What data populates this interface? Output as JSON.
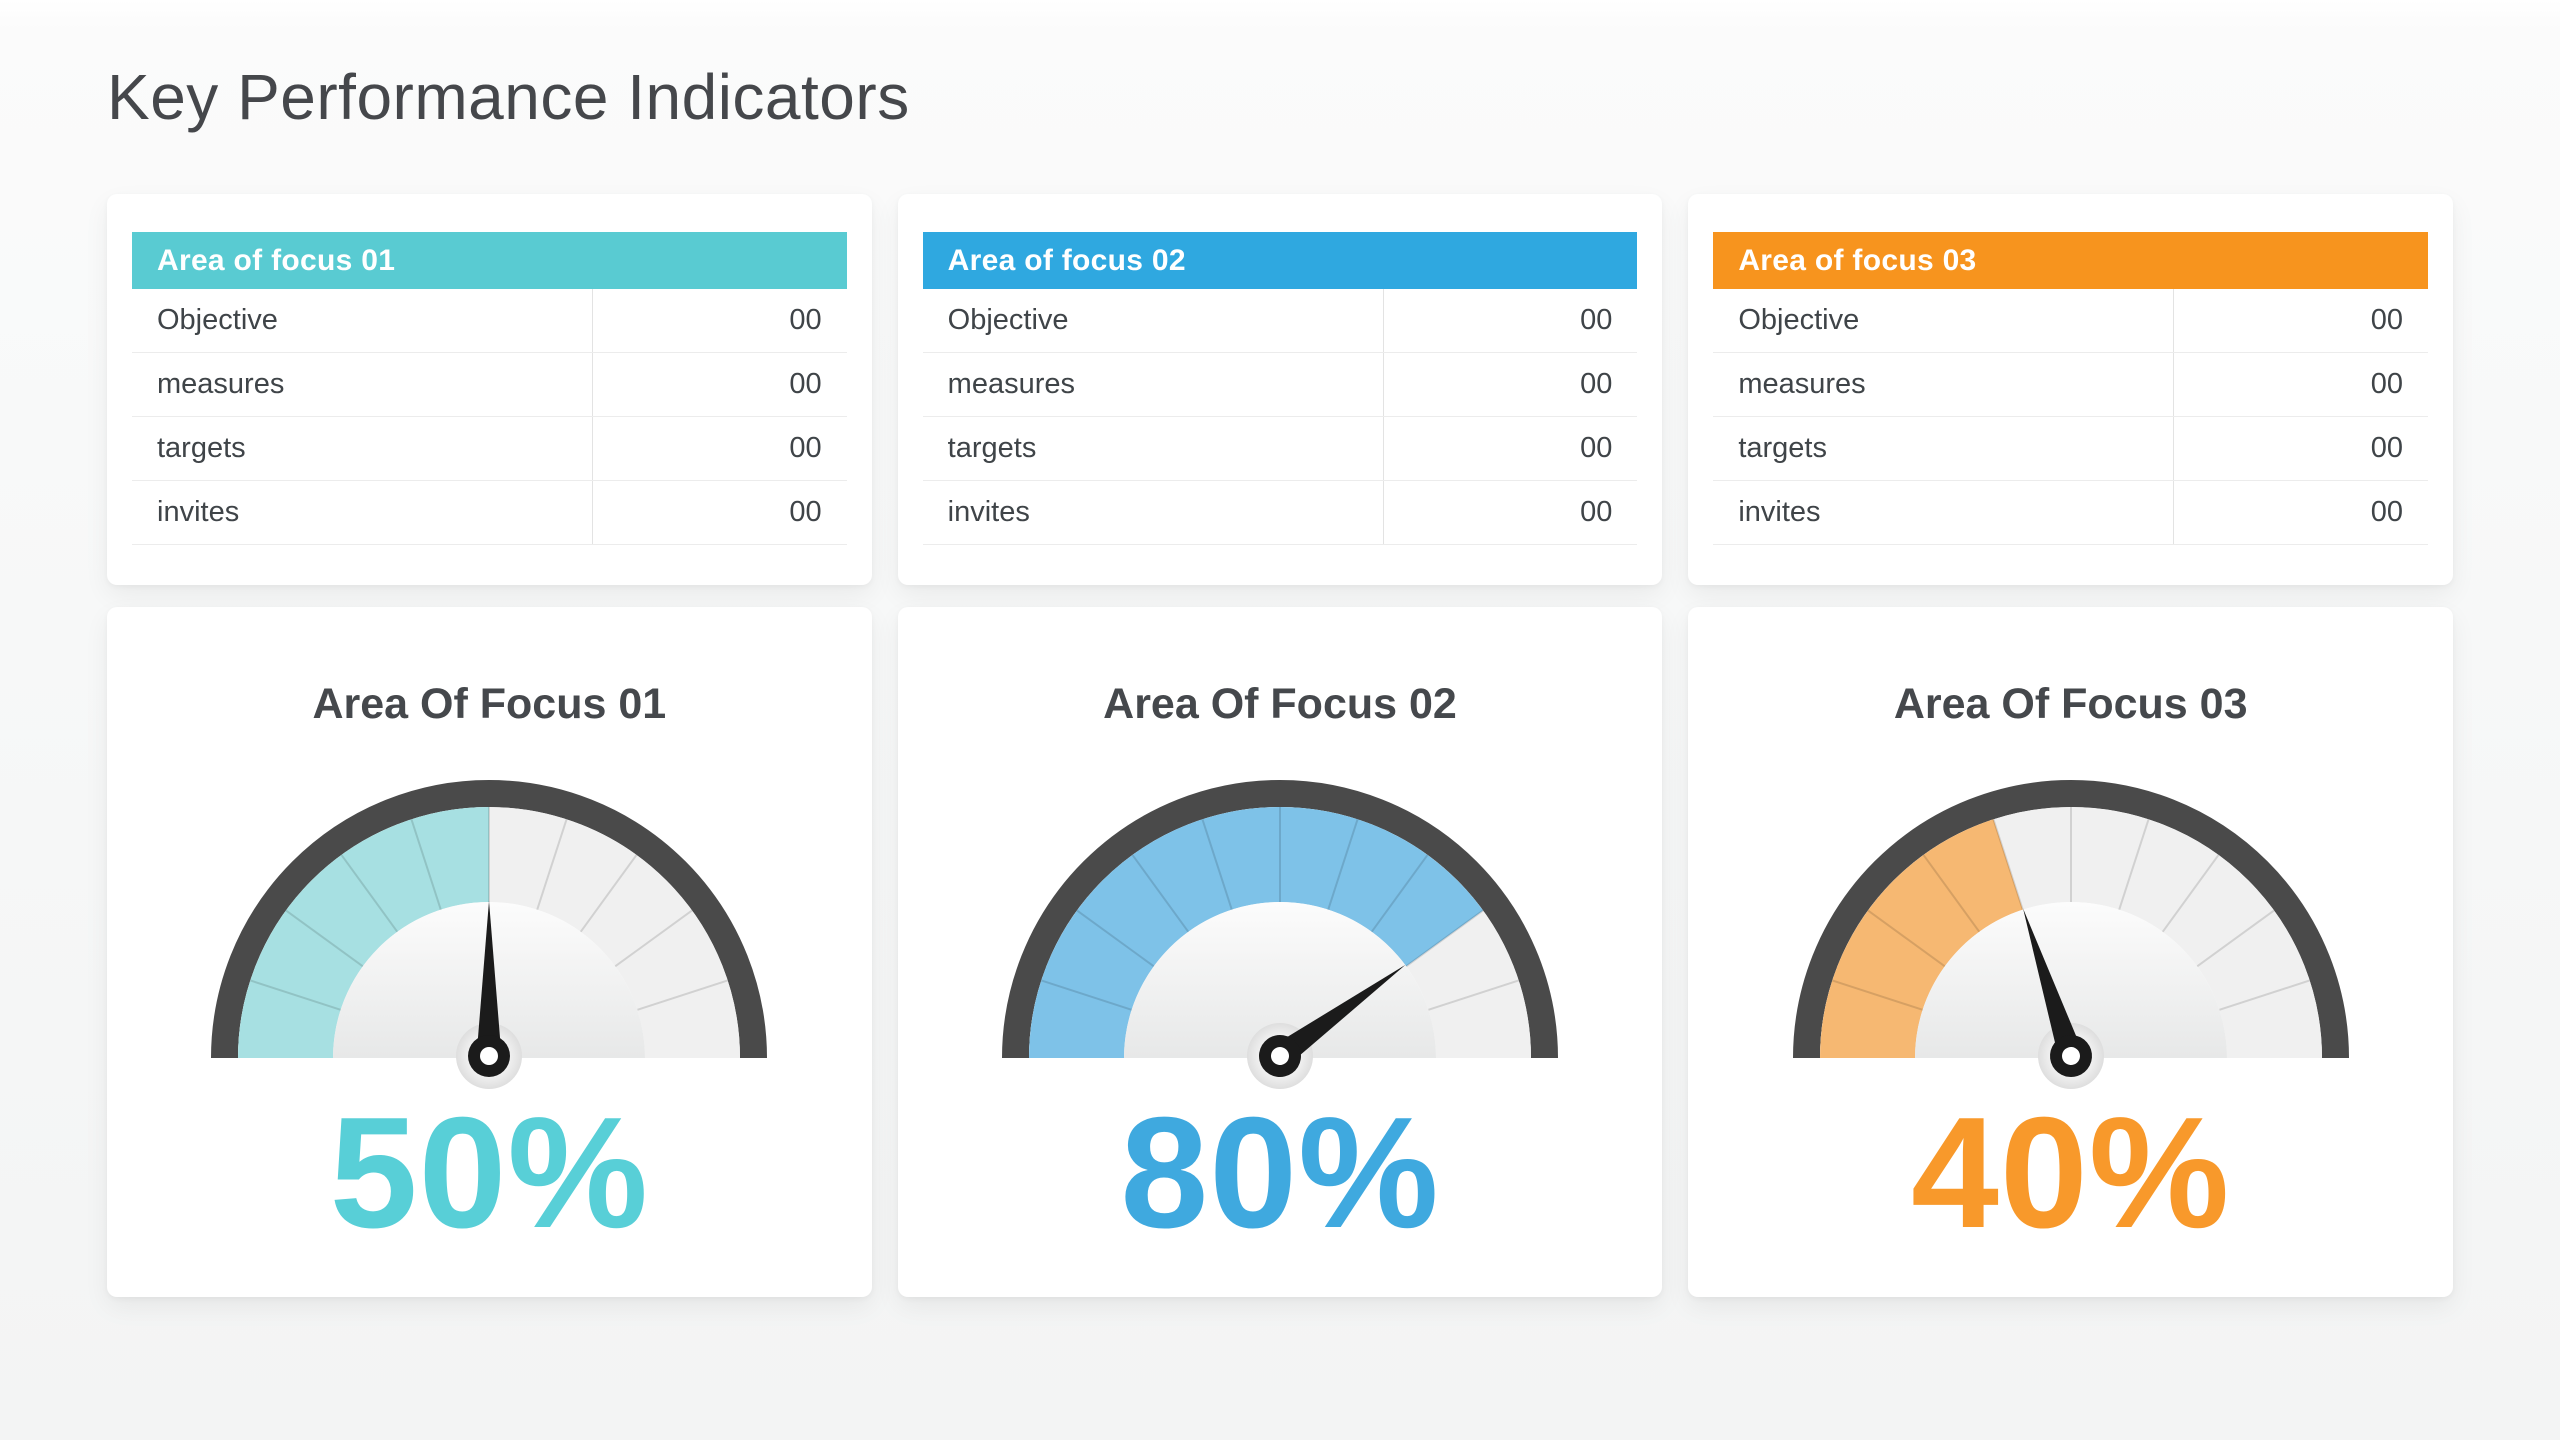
{
  "page": {
    "title": "Key Performance Indicators"
  },
  "tables": [
    {
      "header": "Area of focus 01",
      "header_color": "#59CBD2",
      "rows": [
        {
          "label": "Objective",
          "value": "00"
        },
        {
          "label": "measures",
          "value": "00"
        },
        {
          "label": "targets",
          "value": "00"
        },
        {
          "label": "invites",
          "value": "00"
        }
      ]
    },
    {
      "header": "Area of focus 02",
      "header_color": "#2FA8E0",
      "rows": [
        {
          "label": "Objective",
          "value": "00"
        },
        {
          "label": "measures",
          "value": "00"
        },
        {
          "label": "targets",
          "value": "00"
        },
        {
          "label": "invites",
          "value": "00"
        }
      ]
    },
    {
      "header": "Area of focus 03",
      "header_color": "#F7941E",
      "rows": [
        {
          "label": "Objective",
          "value": "00"
        },
        {
          "label": "measures",
          "value": "00"
        },
        {
          "label": "targets",
          "value": "00"
        },
        {
          "label": "invites",
          "value": "00"
        }
      ]
    }
  ],
  "chart_data": [
    {
      "type": "gauge",
      "title": "Area Of Focus 01",
      "value": 50,
      "min": 0,
      "max": 100,
      "label": "50%",
      "segments": 10,
      "band_color": "#A7E0E2",
      "value_color": "#58CFD7"
    },
    {
      "type": "gauge",
      "title": "Area Of Focus 02",
      "value": 80,
      "min": 0,
      "max": 100,
      "label": "80%",
      "segments": 10,
      "band_color": "#7EC2E8",
      "value_color": "#3FA9DF"
    },
    {
      "type": "gauge",
      "title": "Area Of Focus 03",
      "value": 40,
      "min": 0,
      "max": 100,
      "label": "40%",
      "segments": 10,
      "band_color": "#F6B872",
      "value_color": "#F8992B"
    }
  ],
  "gauge_style": {
    "ring_color": "#4A4A4A",
    "empty_color": "#F0F0F0",
    "tick_color": "rgba(0,0,0,0.13)",
    "needle_color": "#1B1B1B",
    "inner_top": "#FCFCFC",
    "inner_bottom": "#E7E8E8",
    "pivot_center": "#F7F7F7",
    "pivot_edge": "#DEDEDE"
  }
}
